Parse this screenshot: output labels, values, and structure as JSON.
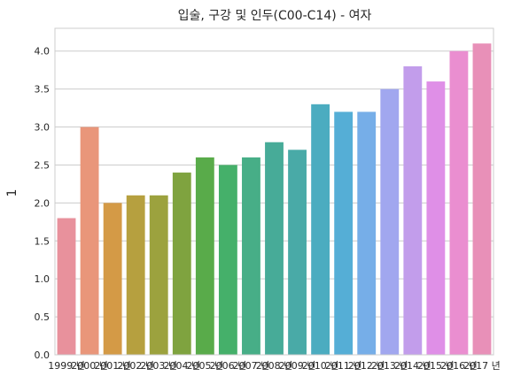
{
  "chart_data": {
    "type": "bar",
    "title": "입술, 구강 및 인두(C00-C14) - 여자",
    "xlabel": "",
    "ylabel": "1",
    "categories": [
      "1999 년",
      "2000 년",
      "2001 년",
      "2002 년",
      "2003 년",
      "2004 년",
      "2005 년",
      "2006 년",
      "2007 년",
      "2008 년",
      "2009 년",
      "2010 년",
      "2011 년",
      "2012 년",
      "2013 년",
      "2014 년",
      "2015 년",
      "2016 년",
      "2017 년"
    ],
    "values": [
      1.8,
      3.0,
      2.0,
      2.1,
      2.1,
      2.4,
      2.6,
      2.5,
      2.6,
      2.8,
      2.7,
      3.3,
      3.2,
      3.2,
      3.5,
      3.8,
      3.6,
      4.0,
      4.1
    ],
    "colors": [
      "#e8919c",
      "#e9967a",
      "#d49a46",
      "#b6a03f",
      "#9ca23e",
      "#7fa33f",
      "#59ab4a",
      "#45b06a",
      "#47ae87",
      "#47ab98",
      "#49aaa7",
      "#4bacc0",
      "#55aed6",
      "#76aee8",
      "#a1a7ef",
      "#c29deb",
      "#df8fe7",
      "#ea8ed0",
      "#e890b8"
    ],
    "yticks": [
      "0.0",
      "0.5",
      "1.0",
      "1.5",
      "2.0",
      "2.5",
      "3.0",
      "3.5",
      "4.0"
    ],
    "ylim": [
      0,
      4.3
    ],
    "grid": true
  }
}
